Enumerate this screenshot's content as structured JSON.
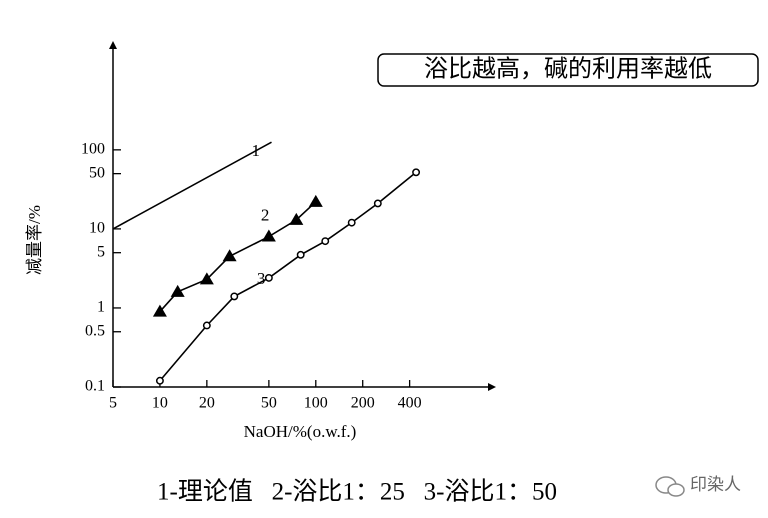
{
  "chart_data": {
    "type": "line",
    "title": "浴比越高，碱的利用率越低",
    "x_label": "NaOH/%(o.w.f.)",
    "y_label": "减量率/%",
    "caption": "1-理论值   2-浴比1：25   3-浴比1：50",
    "watermark": "印染人",
    "x_scale": "log",
    "y_scale": "log",
    "xlim": [
      5,
      1200
    ],
    "ylim": [
      0.1,
      2000
    ],
    "xticks": [
      5,
      10,
      20,
      50,
      100,
      200,
      400
    ],
    "yticks": [
      0.1,
      0.5,
      1,
      5,
      10,
      50,
      100
    ],
    "series": [
      {
        "name": "1",
        "color": "#000000",
        "marker": "none",
        "x": [
          5,
          52
        ],
        "values": [
          10,
          125
        ]
      },
      {
        "name": "2",
        "color": "#000000",
        "marker": "triangle",
        "x": [
          10,
          13,
          20,
          28,
          50,
          75,
          100
        ],
        "values": [
          0.9,
          1.6,
          2.3,
          4.5,
          8,
          13,
          22
        ]
      },
      {
        "name": "3",
        "color": "#000000",
        "marker": "circle",
        "x": [
          10,
          20,
          30,
          50,
          80,
          115,
          170,
          250,
          440
        ],
        "values": [
          0.12,
          0.6,
          1.4,
          2.4,
          4.7,
          7,
          12,
          21,
          52
        ]
      }
    ]
  }
}
